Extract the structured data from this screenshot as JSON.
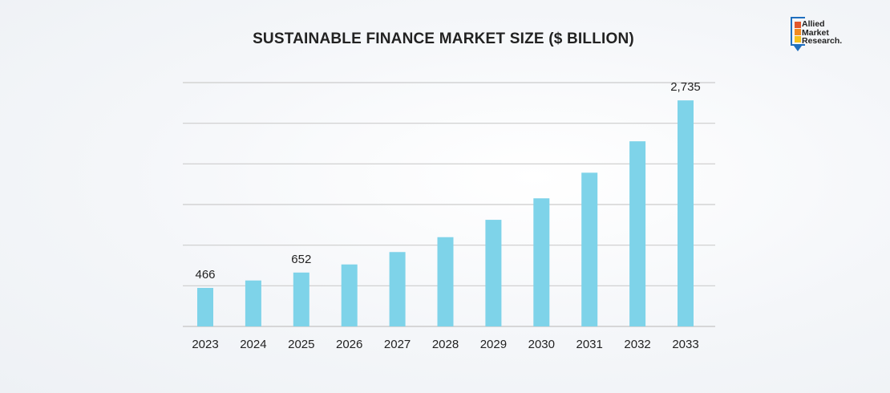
{
  "brand": {
    "logo_lines": [
      "Allied",
      "Market",
      "Research."
    ],
    "bar_colors": [
      "#e2572b",
      "#f28a22",
      "#f6c11d"
    ],
    "frame_color": "#1f6fbf"
  },
  "chart_data": {
    "type": "bar",
    "title": "SUSTAINABLE FINANCE MARKET SIZE ($ BILLION)",
    "categories": [
      "2023",
      "2024",
      "2025",
      "2026",
      "2027",
      "2028",
      "2029",
      "2030",
      "2031",
      "2032",
      "2033"
    ],
    "values": [
      466,
      556,
      652,
      750,
      900,
      1080,
      1290,
      1550,
      1860,
      2240,
      2735
    ],
    "data_labels": [
      {
        "index": 0,
        "text": "466"
      },
      {
        "index": 2,
        "text": "652"
      },
      {
        "index": 10,
        "text": "2,735"
      }
    ],
    "ylim": [
      0,
      2950
    ],
    "gridline_count": 6,
    "grid": true,
    "xlabel": "",
    "ylabel": "",
    "bar_color": "#7ed3e9",
    "grid_color": "#cccccc"
  }
}
